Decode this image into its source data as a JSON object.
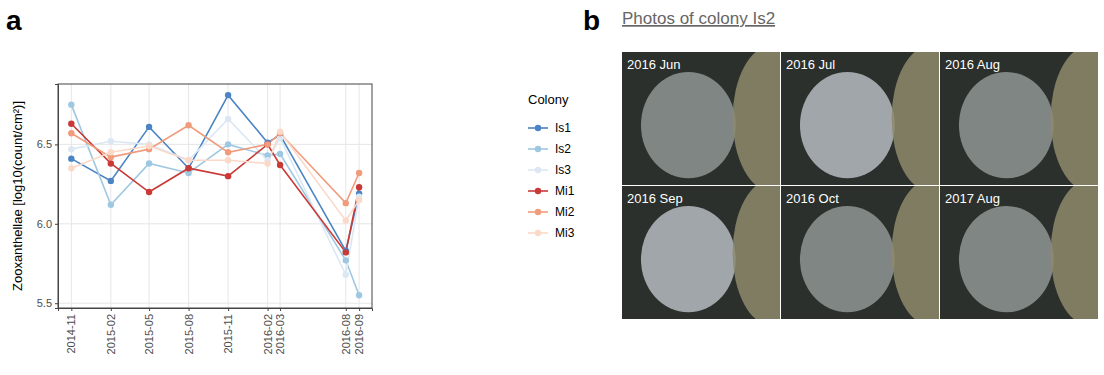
{
  "chart_data": {
    "type": "line",
    "panel": "a",
    "y_label": "Zooxanthellae [log10(count/cm²)]",
    "legend_title": "Colony",
    "legend": "right",
    "grid": true,
    "marker": "circle",
    "x": [
      "2014-11",
      "2015-02",
      "2015-05",
      "2015-08",
      "2015-11",
      "2016-02",
      "2016-03",
      "2016-08",
      "2016-09"
    ],
    "xlim": [
      "2014-10",
      "2016-10"
    ],
    "xticks": [
      "2014-11",
      "2015-02",
      "2015-05",
      "2015-08",
      "2015-11",
      "2016-02",
      "2016-03",
      "2016-08",
      "2016-09"
    ],
    "ylim": [
      5.47,
      6.88
    ],
    "yticks": [
      5.5,
      {
        "value": 6,
        "label": "6.0"
      },
      6.5
    ],
    "series": [
      {
        "name": "Is1",
        "color": "#4a84c4",
        "values": [
          6.41,
          6.27,
          6.61,
          6.35,
          6.81,
          6.51,
          6.56,
          5.83,
          6.19
        ]
      },
      {
        "name": "Is2",
        "color": "#9ec8e2",
        "values": [
          6.75,
          6.12,
          6.38,
          6.32,
          6.5,
          6.43,
          6.44,
          5.77,
          5.55
        ]
      },
      {
        "name": "Is3",
        "color": "#dbe8f3",
        "values": [
          6.47,
          6.52,
          6.5,
          6.4,
          6.66,
          6.4,
          6.54,
          5.68,
          6.17
        ]
      },
      {
        "name": "Mi1",
        "color": "#c93a37",
        "values": [
          6.63,
          6.38,
          6.2,
          6.35,
          6.3,
          6.5,
          6.37,
          5.82,
          6.23
        ]
      },
      {
        "name": "Mi2",
        "color": "#f09c7c",
        "values": [
          6.57,
          6.42,
          6.47,
          6.62,
          6.45,
          6.5,
          6.57,
          6.13,
          6.32
        ]
      },
      {
        "name": "Mi3",
        "color": "#fbd9c9",
        "values": [
          6.35,
          6.45,
          6.49,
          6.4,
          6.4,
          6.38,
          6.58,
          6.02,
          6.15
        ]
      }
    ]
  },
  "photo_panel": {
    "panel": "b",
    "title": "Photos of colony Is2",
    "photos": [
      "2016 Jun",
      "2016 Jul",
      "2016 Aug",
      "2016 Sep",
      "2016 Oct",
      "2017 Aug"
    ]
  }
}
